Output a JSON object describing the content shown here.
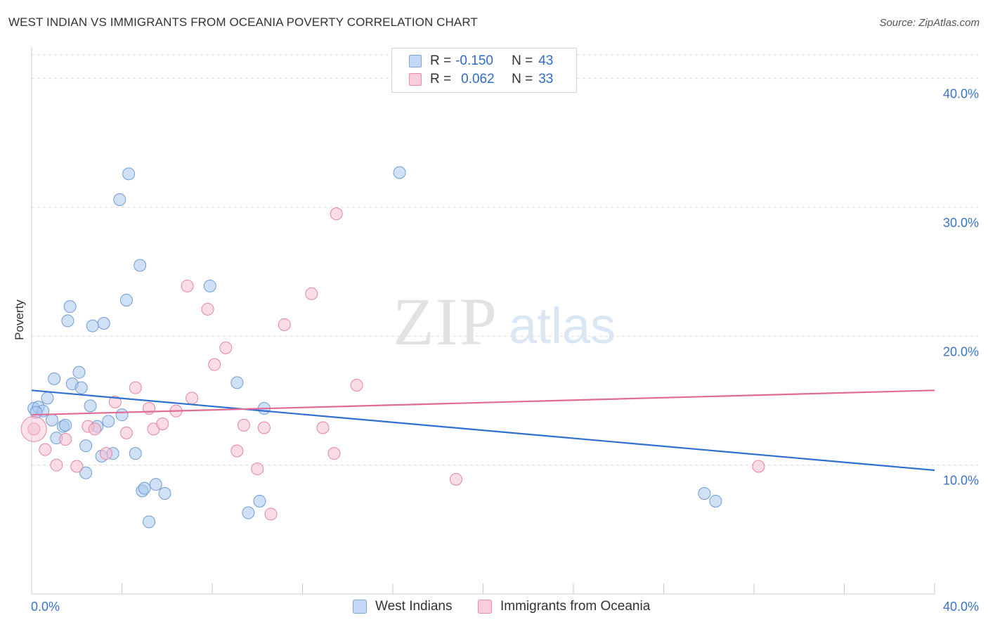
{
  "title": "WEST INDIAN VS IMMIGRANTS FROM OCEANIA POVERTY CORRELATION CHART",
  "source": "Source: ZipAtlas.com",
  "watermark": {
    "zip": "ZIP",
    "atlas": "atlas"
  },
  "legend_top": [
    {
      "r_label": "R =",
      "r_value": "-0.150",
      "n_label": "N =",
      "n_value": "43"
    },
    {
      "r_label": "R =",
      "r_value": "0.062",
      "n_label": "N =",
      "n_value": "33"
    }
  ],
  "chart_data": {
    "type": "scatter",
    "title": "WEST INDIAN VS IMMIGRANTS FROM OCEANIA POVERTY CORRELATION CHART",
    "xlabel": "",
    "ylabel": "Poverty",
    "xlim": [
      0,
      40
    ],
    "ylim": [
      0,
      42
    ],
    "x_tick_labels": [
      "0.0%",
      "40.0%"
    ],
    "y_ticks": [
      10,
      20,
      30,
      40
    ],
    "y_tick_labels": [
      "10.0%",
      "20.0%",
      "30.0%",
      "40.0%"
    ],
    "grid": "horizontal dashed",
    "legend_position": "bottom",
    "series": [
      {
        "name": "West Indians",
        "color": "#a9c8ef",
        "stroke": "#6f9bd8",
        "trend_color": "#2f6fcf",
        "trend": {
          "x": [
            0,
            40
          ],
          "y": [
            15.8,
            9.6
          ]
        },
        "points": [
          [
            0.1,
            14.4
          ],
          [
            0.3,
            14.5
          ],
          [
            0.5,
            14.2
          ],
          [
            0.7,
            15.2
          ],
          [
            0.9,
            13.5
          ],
          [
            1.0,
            16.7
          ],
          [
            1.1,
            12.1
          ],
          [
            1.4,
            13.0
          ],
          [
            1.5,
            13.1
          ],
          [
            1.6,
            21.2
          ],
          [
            1.7,
            22.3
          ],
          [
            1.8,
            16.3
          ],
          [
            2.1,
            17.2
          ],
          [
            2.2,
            16.0
          ],
          [
            2.4,
            11.5
          ],
          [
            2.4,
            9.4
          ],
          [
            2.6,
            14.6
          ],
          [
            2.7,
            20.8
          ],
          [
            2.9,
            13.0
          ],
          [
            3.1,
            10.7
          ],
          [
            3.2,
            21.0
          ],
          [
            3.4,
            13.4
          ],
          [
            3.6,
            10.9
          ],
          [
            3.9,
            30.6
          ],
          [
            4.0,
            13.9
          ],
          [
            4.2,
            22.8
          ],
          [
            4.3,
            32.6
          ],
          [
            4.6,
            10.9
          ],
          [
            4.8,
            25.5
          ],
          [
            4.9,
            8.0
          ],
          [
            5.0,
            8.2
          ],
          [
            5.2,
            5.6
          ],
          [
            5.5,
            8.5
          ],
          [
            5.9,
            7.8
          ],
          [
            7.9,
            23.9
          ],
          [
            9.1,
            16.4
          ],
          [
            9.6,
            6.3
          ],
          [
            10.1,
            7.2
          ],
          [
            10.3,
            14.4
          ],
          [
            16.3,
            32.7
          ],
          [
            29.8,
            7.8
          ],
          [
            30.3,
            7.2
          ],
          [
            0.2,
            14.1
          ]
        ]
      },
      {
        "name": "Immigrants from Oceania",
        "color": "#f6bfd0",
        "stroke": "#e8849f",
        "trend_color": "#e06b95",
        "trend": {
          "x": [
            0,
            40
          ],
          "y": [
            13.9,
            15.8
          ]
        },
        "points": [
          [
            0.1,
            12.8
          ],
          [
            0.6,
            11.2
          ],
          [
            1.1,
            10.0
          ],
          [
            1.5,
            12.0
          ],
          [
            2.0,
            9.9
          ],
          [
            2.5,
            13.0
          ],
          [
            2.8,
            12.8
          ],
          [
            3.3,
            10.9
          ],
          [
            3.7,
            14.9
          ],
          [
            4.2,
            12.5
          ],
          [
            4.6,
            16.0
          ],
          [
            5.2,
            14.4
          ],
          [
            5.4,
            12.8
          ],
          [
            5.8,
            13.2
          ],
          [
            6.4,
            14.2
          ],
          [
            6.9,
            23.9
          ],
          [
            7.1,
            15.2
          ],
          [
            7.8,
            22.1
          ],
          [
            8.1,
            17.8
          ],
          [
            8.6,
            19.1
          ],
          [
            9.1,
            11.1
          ],
          [
            9.4,
            13.1
          ],
          [
            10.0,
            9.7
          ],
          [
            10.3,
            12.9
          ],
          [
            10.6,
            6.2
          ],
          [
            11.2,
            20.9
          ],
          [
            12.4,
            23.3
          ],
          [
            12.9,
            12.9
          ],
          [
            13.4,
            10.9
          ],
          [
            13.5,
            29.5
          ],
          [
            14.4,
            16.2
          ],
          [
            18.8,
            8.9
          ],
          [
            32.2,
            9.9
          ]
        ]
      }
    ]
  }
}
